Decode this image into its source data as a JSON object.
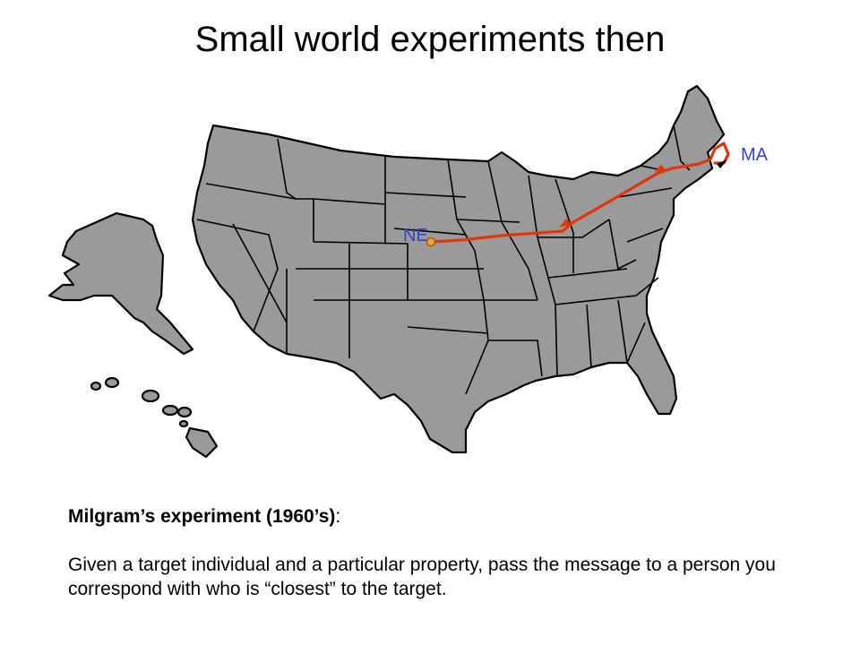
{
  "slide": {
    "title": "Small world experiments then"
  },
  "map": {
    "origin_label": "NE",
    "target_label": "MA",
    "route_color": "#e0360c",
    "land_color": "#9a9a9a",
    "label_color": "#3344cc"
  },
  "caption": {
    "heading": "Milgram’s experiment (1960’s)",
    "heading_suffix": ":",
    "body": "Given a target individual and a particular property, pass the message to a person you correspond with who is “closest” to the target."
  }
}
